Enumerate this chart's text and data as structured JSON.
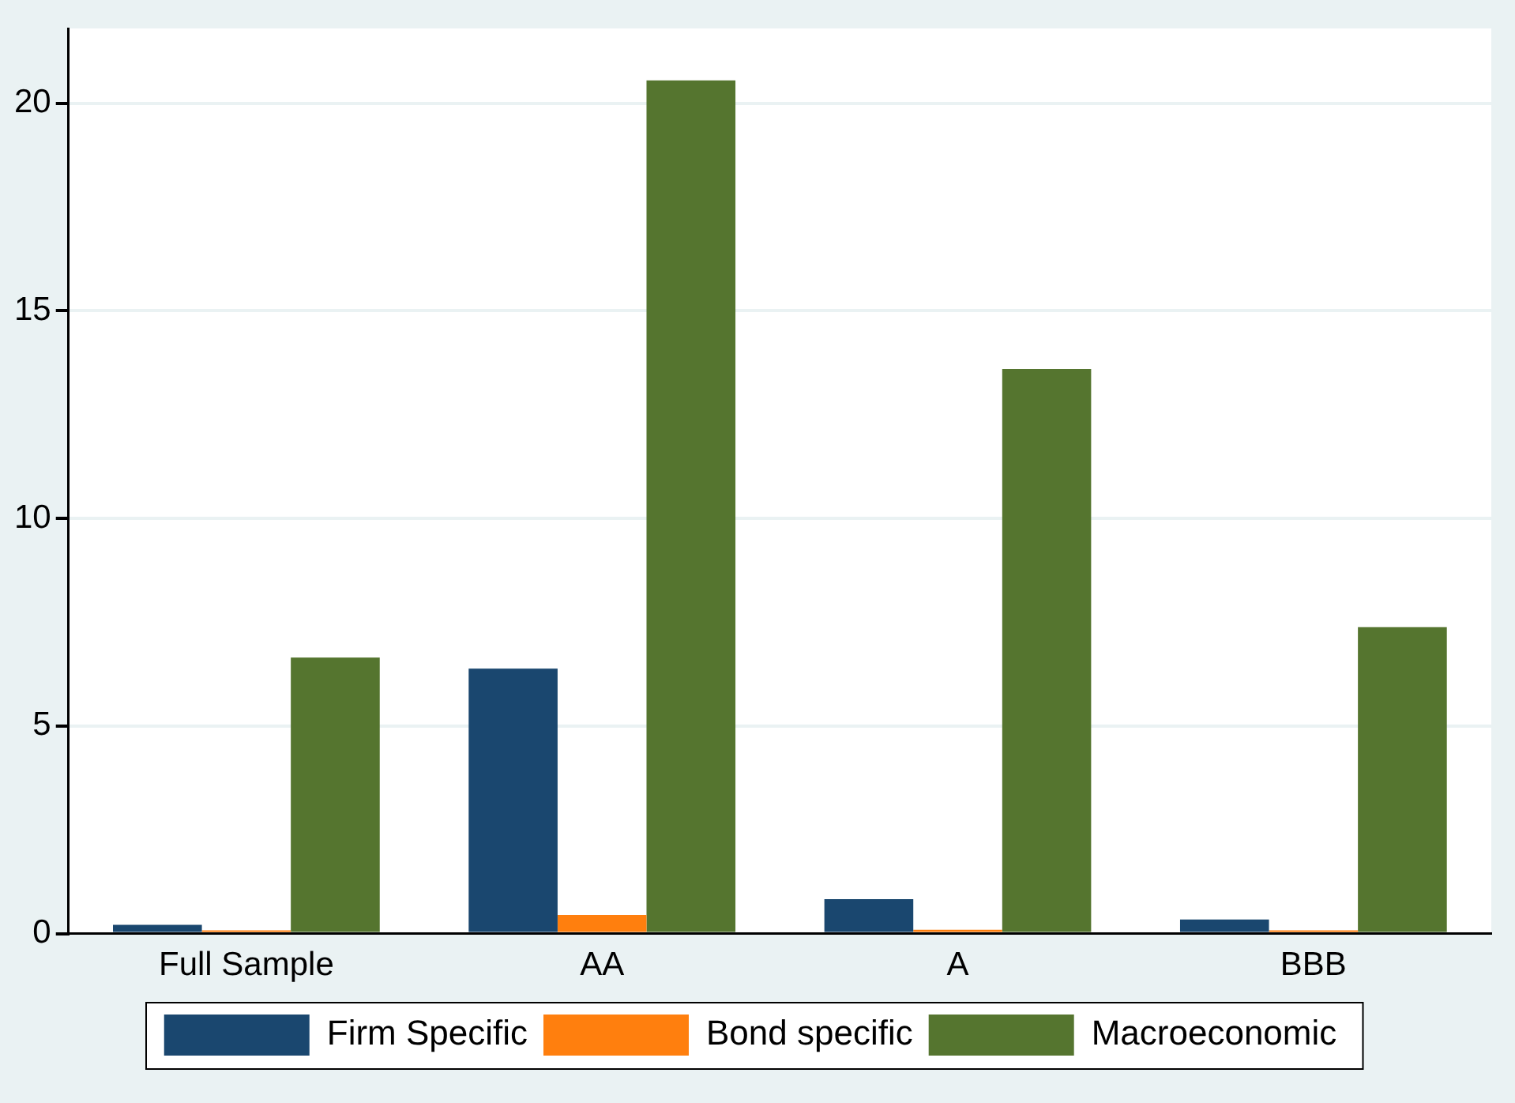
{
  "chart_data": {
    "type": "bar",
    "categories": [
      "Full Sample",
      "AA",
      "A",
      "BBB"
    ],
    "series": [
      {
        "name": "Firm Specific",
        "color": "#1a476f",
        "values": [
          0.21,
          6.38,
          0.83,
          0.34
        ]
      },
      {
        "name": "Bond specific",
        "color": "#ff7f0e",
        "values": [
          0.05,
          0.45,
          0.09,
          0.04
        ]
      },
      {
        "name": "Macroeconomic",
        "color": "#55752f",
        "values": [
          6.65,
          20.55,
          13.6,
          7.38
        ]
      }
    ],
    "ylim": [
      0,
      21.8
    ],
    "yticks": [
      0,
      5,
      10,
      15,
      20
    ],
    "grid": "y",
    "legend": "bottom"
  }
}
